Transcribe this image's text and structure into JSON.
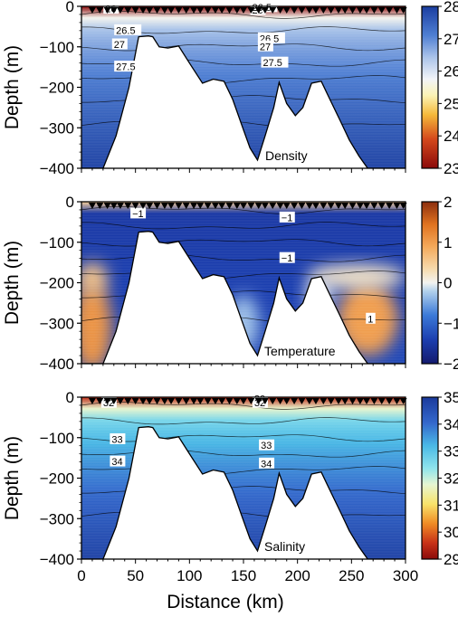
{
  "chart_data": [
    {
      "type": "heatmap",
      "title": "Density",
      "ylabel": "Depth (m)",
      "xlabel": "",
      "xlim": [
        0,
        300
      ],
      "ylim": [
        -400,
        0
      ],
      "yticks": [
        0,
        -100,
        -200,
        -300,
        -400
      ],
      "ytick_labels": [
        "0",
        "−100",
        "−200",
        "−300",
        "−400"
      ],
      "colorbar": {
        "min": 23,
        "max": 28,
        "ticks": [
          23,
          24,
          25,
          26,
          27,
          28
        ],
        "tick_labels": [
          "23",
          "24",
          "25",
          "26",
          "27",
          "28"
        ],
        "colormap": "red-yellow-white-blue"
      },
      "surface": {
        "min": 23,
        "max": 26
      },
      "deep": {
        "min": 26,
        "max": 27.9
      },
      "anomalies": [],
      "contours": [
        {
          "label": "26",
          "x": 22,
          "depth": -7
        },
        {
          "label": "26",
          "x": 158,
          "depth": -10
        },
        {
          "label": "26.5",
          "x": 158,
          "depth": -3
        },
        {
          "label": "26.5",
          "x": 32,
          "depth": -60
        },
        {
          "label": "27",
          "x": 30,
          "depth": -95
        },
        {
          "label": "27.5",
          "x": 32,
          "depth": -150
        },
        {
          "label": "26.5",
          "x": 165,
          "depth": -80
        },
        {
          "label": "27",
          "x": 165,
          "depth": -100
        },
        {
          "label": "27.5",
          "x": 168,
          "depth": -140
        }
      ]
    },
    {
      "type": "heatmap",
      "title": "Temperature",
      "ylabel": "Depth (m)",
      "xlabel": "",
      "xlim": [
        0,
        300
      ],
      "ylim": [
        -400,
        0
      ],
      "yticks": [
        0,
        -100,
        -200,
        -300,
        -400
      ],
      "ytick_labels": [
        "0",
        "−100",
        "−200",
        "−300",
        "−400"
      ],
      "colorbar": {
        "min": -2,
        "max": 2,
        "ticks": [
          -2,
          -1,
          0,
          1,
          2
        ],
        "tick_labels": [
          "−2",
          "−1",
          "0",
          "1",
          "2"
        ],
        "colormap": "blue-white-orange"
      },
      "surface": {
        "min": -0.5,
        "max": 0.5
      },
      "deep": {
        "min": -1.5,
        "max": -1.3
      },
      "anomalies": [
        {
          "x": 10,
          "depth": -310,
          "value": 1.1,
          "rx": 18,
          "rd": 110
        },
        {
          "x": 265,
          "depth": -290,
          "value": 1.0,
          "rx": 28,
          "rd": 90
        },
        {
          "x": 10,
          "depth": -190,
          "value": 0.6,
          "rx": 14,
          "rd": 40
        },
        {
          "x": 255,
          "depth": -185,
          "value": 0.2,
          "rx": 45,
          "rd": 30
        },
        {
          "x": 150,
          "depth": -300,
          "value": -0.3,
          "rx": 14,
          "rd": 70
        },
        {
          "x": 220,
          "depth": -230,
          "value": 0.0,
          "rx": 12,
          "rd": 40
        }
      ],
      "contours": [
        {
          "label": "−1",
          "x": 47,
          "depth": -30
        },
        {
          "label": "−1",
          "x": 185,
          "depth": -40
        },
        {
          "label": "−1",
          "x": 185,
          "depth": -140
        },
        {
          "label": "1",
          "x": 265,
          "depth": -290
        }
      ]
    },
    {
      "type": "heatmap",
      "title": "Salinity",
      "ylabel": "Depth (m)",
      "xlabel": "Distance (km)",
      "xlim": [
        0,
        300
      ],
      "ylim": [
        -400,
        0
      ],
      "xticks": [
        0,
        50,
        100,
        150,
        200,
        250,
        300
      ],
      "xtick_labels": [
        "0",
        "50",
        "100",
        "150",
        "200",
        "250",
        "300"
      ],
      "yticks": [
        0,
        -100,
        -200,
        -300,
        -400
      ],
      "ytick_labels": [
        "0",
        "−100",
        "−200",
        "−300",
        "−400"
      ],
      "colorbar": {
        "min": 29,
        "max": 35,
        "ticks": [
          29,
          30,
          31,
          32,
          33,
          34,
          35
        ],
        "tick_labels": [
          "29",
          "30",
          "31",
          "32",
          "33",
          "34",
          "35"
        ],
        "colormap": "red-yellow-cyan-blue"
      },
      "surface": {
        "min": 29.5,
        "max": 32
      },
      "deep": {
        "min": 32.5,
        "max": 34.8
      },
      "anomalies": [],
      "contours": [
        {
          "label": "32",
          "x": 20,
          "depth": -15
        },
        {
          "label": "30",
          "x": 160,
          "depth": -5
        },
        {
          "label": "32",
          "x": 160,
          "depth": -15
        },
        {
          "label": "33",
          "x": 28,
          "depth": -105
        },
        {
          "label": "34",
          "x": 28,
          "depth": -160
        },
        {
          "label": "33",
          "x": 166,
          "depth": -120
        },
        {
          "label": "34",
          "x": 166,
          "depth": -165
        }
      ]
    }
  ],
  "bathymetry": {
    "x": [
      0,
      20,
      32,
      44,
      53,
      62,
      66,
      72,
      80,
      90,
      100,
      112,
      122,
      132,
      140,
      148,
      156,
      163,
      170,
      178,
      183,
      190,
      198,
      205,
      213,
      222,
      230,
      240,
      248,
      257,
      265,
      300
    ],
    "depth": [
      -400,
      -400,
      -320,
      -200,
      -75,
      -73,
      -75,
      -100,
      -103,
      -98,
      -140,
      -190,
      -180,
      -185,
      -230,
      -290,
      -350,
      -380,
      -320,
      -250,
      -188,
      -240,
      -270,
      -250,
      -190,
      -185,
      -230,
      -285,
      -330,
      -370,
      -400,
      -400
    ]
  },
  "stations_km": [
    10,
    17,
    24,
    30,
    36,
    43,
    50,
    57,
    63,
    70,
    77,
    83,
    90,
    97,
    104,
    110,
    117,
    124,
    130,
    137,
    144,
    150,
    157,
    164,
    170,
    177,
    184,
    190,
    197,
    204,
    211,
    217,
    224,
    231,
    238,
    244,
    251,
    258,
    264,
    271,
    278,
    285,
    292,
    298
  ]
}
